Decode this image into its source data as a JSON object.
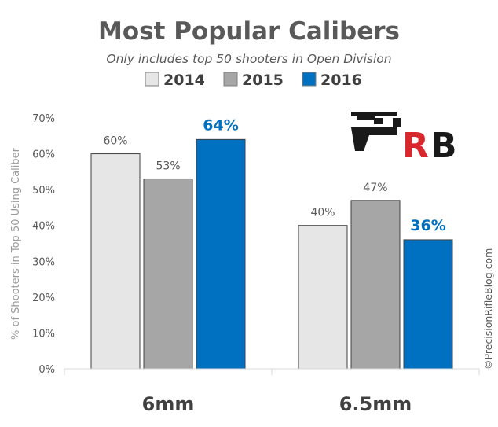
{
  "chart_data": {
    "type": "bar",
    "title": "Most Popular Calibers",
    "subtitle": "Only includes top 50 shooters in Open Division",
    "ylabel": "% of Shooters in Top 50 Using Caliber",
    "xlabel": "",
    "ylim": [
      0,
      70
    ],
    "yticks": [
      "0%",
      "10%",
      "20%",
      "30%",
      "40%",
      "50%",
      "60%",
      "70%"
    ],
    "categories": [
      "6mm",
      "6.5mm"
    ],
    "series": [
      {
        "name": "2014",
        "color": "#e6e6e6",
        "values": [
          60,
          40
        ],
        "labels": [
          "60%",
          "40%"
        ]
      },
      {
        "name": "2015",
        "color": "#a6a6a6",
        "values": [
          53,
          47
        ],
        "labels": [
          "53%",
          "47%"
        ]
      },
      {
        "name": "2016",
        "color": "#0070c0",
        "values": [
          64,
          36
        ],
        "labels": [
          "64%",
          "36%"
        ],
        "highlight": true
      }
    ],
    "legend_position": "top",
    "grid": false
  },
  "logo": {
    "text": "PRB",
    "colors": {
      "dark": "#1a1a1a",
      "accent": "#d9272e"
    }
  },
  "copyright": "©PrecisionRifleBlog.com"
}
